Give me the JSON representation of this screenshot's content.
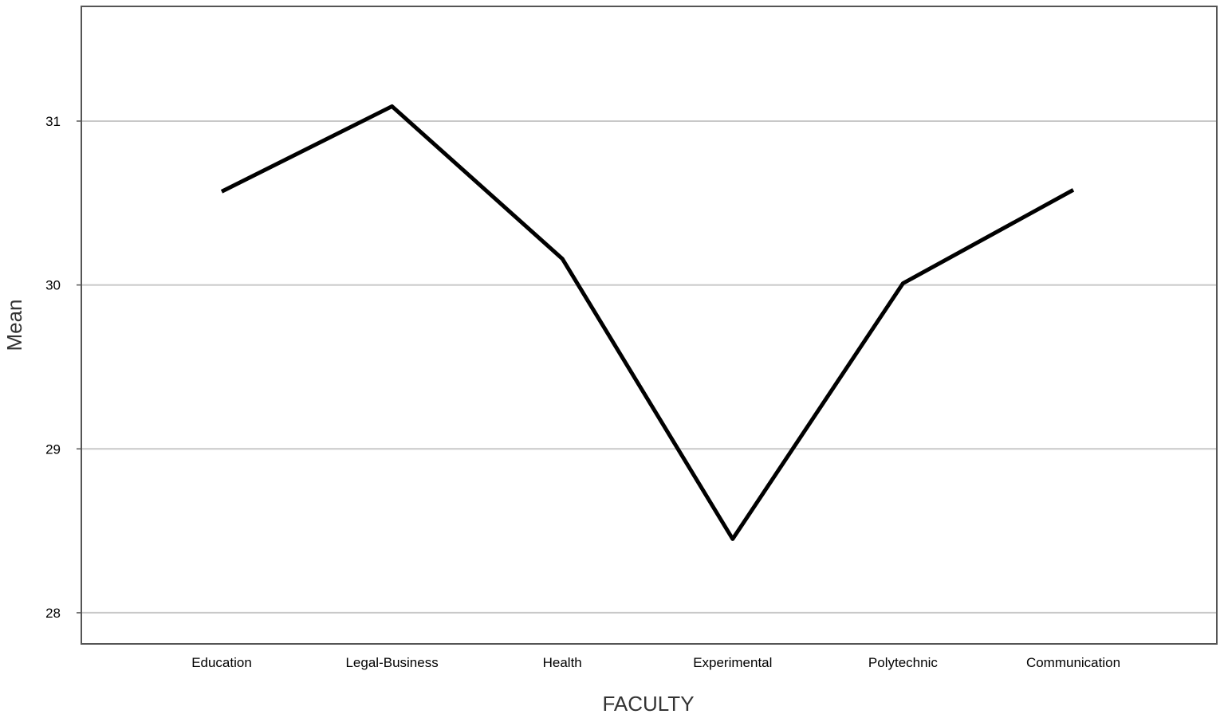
{
  "chart_data": {
    "type": "line",
    "xlabel": "FACULTY",
    "ylabel": "Mean",
    "categories": [
      "Education",
      "Legal-Business",
      "Health",
      "Experimental",
      "Polytechnic",
      "Communication"
    ],
    "series": [
      {
        "values": [
          30.57,
          31.09,
          30.16,
          28.45,
          30.01,
          30.58
        ]
      }
    ],
    "ylim": [
      27.81,
      31.7
    ],
    "yticks": [
      28,
      29,
      30,
      31
    ],
    "grid": "horizontal",
    "colors": {
      "line": "#000000",
      "grid": "#c8c8c8",
      "frame": "#555555"
    }
  }
}
